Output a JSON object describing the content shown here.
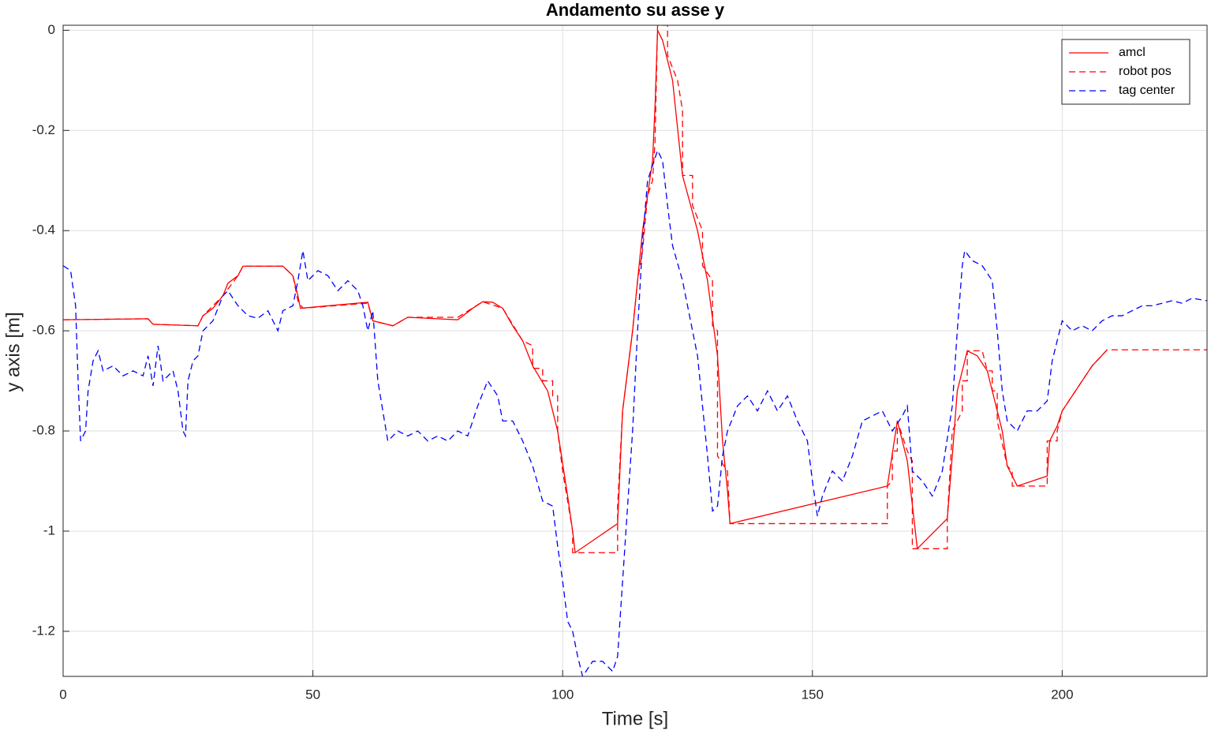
{
  "chart_data": {
    "type": "line",
    "title": "Andamento su asse y",
    "xlabel": "Time [s]",
    "ylabel": "y axis [m]",
    "xlim": [
      0,
      229
    ],
    "ylim": [
      -1.29,
      0.01
    ],
    "xticks": [
      0,
      50,
      100,
      150,
      200
    ],
    "yticks": [
      0,
      -0.2,
      -0.4,
      -0.6,
      -0.8,
      -1,
      -1.2
    ],
    "grid": true,
    "legend": "northeast",
    "series": [
      {
        "name": "amcl",
        "color": "#ff0000",
        "dash": "solid",
        "x": [
          0,
          17,
          18,
          27,
          28,
          30,
          32,
          33,
          35,
          36,
          44,
          46,
          47,
          47.5,
          61,
          62,
          66,
          69,
          79,
          82,
          84,
          86,
          88,
          90,
          92,
          94,
          97,
          99,
          101,
          102,
          102.5,
          111,
          112,
          114,
          116,
          118,
          118.5,
          119,
          120,
          122,
          124,
          127,
          129,
          131,
          132,
          133,
          133.5,
          165,
          167,
          169,
          171,
          177,
          178,
          179,
          181,
          183,
          185,
          188,
          189,
          191,
          197,
          197.5,
          199,
          200,
          202,
          204,
          206,
          209
        ],
        "values": [
          -0.578,
          -0.576,
          -0.587,
          -0.59,
          -0.57,
          -0.555,
          -0.53,
          -0.505,
          -0.49,
          -0.471,
          -0.471,
          -0.49,
          -0.53,
          -0.555,
          -0.543,
          -0.58,
          -0.59,
          -0.573,
          -0.578,
          -0.555,
          -0.542,
          -0.543,
          -0.555,
          -0.59,
          -0.62,
          -0.67,
          -0.72,
          -0.8,
          -0.93,
          -1.0,
          -1.043,
          -0.985,
          -0.76,
          -0.6,
          -0.4,
          -0.26,
          -0.15,
          0.0,
          -0.02,
          -0.1,
          -0.29,
          -0.4,
          -0.5,
          -0.65,
          -0.82,
          -0.92,
          -0.985,
          -0.91,
          -0.78,
          -0.86,
          -1.035,
          -0.975,
          -0.85,
          -0.72,
          -0.64,
          -0.65,
          -0.68,
          -0.8,
          -0.87,
          -0.91,
          -0.89,
          -0.82,
          -0.79,
          -0.76,
          -0.73,
          -0.7,
          -0.67,
          -0.638
        ]
      },
      {
        "name": "robot pos",
        "color": "#ff0000",
        "dash": "dashed",
        "x": [
          0,
          17,
          18,
          27,
          28,
          32,
          35,
          36,
          44,
          46,
          47,
          48,
          61,
          62,
          66,
          69,
          79,
          84,
          88,
          92,
          94,
          94,
          96,
          96,
          98,
          98,
          99,
          99,
          100,
          102,
          102,
          111,
          111,
          112,
          114,
          115,
          116,
          117,
          118,
          118.5,
          119,
          121,
          121,
          123,
          124,
          124,
          126,
          126,
          128,
          128,
          130,
          130,
          131,
          131,
          133,
          133.5,
          165,
          165,
          166,
          166,
          167,
          167,
          169,
          170,
          170,
          177,
          177,
          178,
          180,
          180,
          181,
          181,
          184,
          185,
          186,
          186,
          187,
          187,
          189,
          190,
          190,
          197,
          197,
          199,
          199,
          200,
          202,
          206,
          209,
          229
        ],
        "values": [
          -0.578,
          -0.576,
          -0.587,
          -0.59,
          -0.57,
          -0.53,
          -0.49,
          -0.471,
          -0.471,
          -0.49,
          -0.54,
          -0.555,
          -0.545,
          -0.58,
          -0.59,
          -0.573,
          -0.573,
          -0.542,
          -0.555,
          -0.62,
          -0.63,
          -0.675,
          -0.675,
          -0.7,
          -0.7,
          -0.73,
          -0.73,
          -0.8,
          -0.88,
          -1.0,
          -1.043,
          -1.043,
          -0.95,
          -0.76,
          -0.6,
          -0.5,
          -0.44,
          -0.33,
          -0.3,
          -0.22,
          0.01,
          0.01,
          -0.05,
          -0.1,
          -0.16,
          -0.29,
          -0.29,
          -0.35,
          -0.4,
          -0.47,
          -0.5,
          -0.59,
          -0.6,
          -0.85,
          -0.88,
          -0.985,
          -0.985,
          -0.91,
          -0.9,
          -0.84,
          -0.84,
          -0.78,
          -0.84,
          -0.86,
          -1.035,
          -1.035,
          -0.975,
          -0.8,
          -0.76,
          -0.7,
          -0.7,
          -0.64,
          -0.64,
          -0.68,
          -0.68,
          -0.72,
          -0.72,
          -0.78,
          -0.87,
          -0.88,
          -0.91,
          -0.91,
          -0.82,
          -0.82,
          -0.8,
          -0.76,
          -0.73,
          -0.67,
          -0.638,
          -0.638
        ]
      },
      {
        "name": "tag center",
        "color": "#0000ff",
        "dash": "dashed",
        "x": [
          0,
          1.5,
          2.5,
          3,
          3.5,
          4.5,
          5,
          6,
          7,
          8,
          10,
          12,
          14,
          16,
          17,
          18,
          19,
          20,
          22,
          23,
          24,
          24.5,
          25,
          26,
          27,
          28,
          30,
          32,
          33,
          35,
          37,
          39,
          41,
          42,
          43,
          44,
          46,
          47,
          48,
          49,
          51,
          53,
          55,
          57,
          59,
          60,
          61,
          62,
          63,
          64,
          65,
          67,
          69,
          71,
          73,
          75,
          77,
          79,
          81,
          83,
          85,
          87,
          88,
          90,
          92,
          94,
          96,
          98,
          99,
          100,
          101,
          102,
          103,
          104,
          106,
          108,
          110,
          111,
          112,
          113,
          114,
          115,
          116,
          117,
          118,
          119,
          120,
          121,
          122,
          124,
          126,
          127,
          128,
          129,
          130,
          131,
          132,
          133,
          135,
          137,
          139,
          141,
          143,
          145,
          147,
          149,
          150,
          151,
          152,
          154,
          156,
          158,
          160,
          162,
          164,
          166,
          168,
          169,
          170,
          172,
          174,
          176,
          178,
          179,
          180,
          180.5,
          182,
          184,
          186,
          187,
          188,
          189,
          191,
          193,
          195,
          197,
          198,
          199,
          200,
          202,
          204,
          206,
          208,
          210,
          212,
          214,
          216,
          218,
          220,
          222,
          224,
          226,
          229
        ],
        "values": [
          -0.47,
          -0.48,
          -0.55,
          -0.7,
          -0.82,
          -0.8,
          -0.72,
          -0.66,
          -0.64,
          -0.68,
          -0.67,
          -0.69,
          -0.68,
          -0.69,
          -0.65,
          -0.71,
          -0.63,
          -0.7,
          -0.68,
          -0.72,
          -0.8,
          -0.81,
          -0.7,
          -0.66,
          -0.65,
          -0.6,
          -0.58,
          -0.53,
          -0.52,
          -0.55,
          -0.57,
          -0.575,
          -0.56,
          -0.58,
          -0.6,
          -0.56,
          -0.55,
          -0.5,
          -0.44,
          -0.5,
          -0.48,
          -0.49,
          -0.52,
          -0.5,
          -0.52,
          -0.55,
          -0.6,
          -0.56,
          -0.7,
          -0.76,
          -0.82,
          -0.8,
          -0.81,
          -0.8,
          -0.82,
          -0.81,
          -0.82,
          -0.8,
          -0.81,
          -0.75,
          -0.7,
          -0.73,
          -0.78,
          -0.78,
          -0.82,
          -0.87,
          -0.94,
          -0.95,
          -1.03,
          -1.1,
          -1.18,
          -1.2,
          -1.25,
          -1.29,
          -1.26,
          -1.26,
          -1.28,
          -1.25,
          -1.1,
          -0.95,
          -0.8,
          -0.6,
          -0.42,
          -0.3,
          -0.27,
          -0.24,
          -0.26,
          -0.35,
          -0.43,
          -0.5,
          -0.6,
          -0.65,
          -0.75,
          -0.85,
          -0.96,
          -0.95,
          -0.85,
          -0.8,
          -0.75,
          -0.73,
          -0.76,
          -0.72,
          -0.76,
          -0.73,
          -0.78,
          -0.82,
          -0.9,
          -0.97,
          -0.93,
          -0.88,
          -0.9,
          -0.85,
          -0.78,
          -0.77,
          -0.76,
          -0.8,
          -0.77,
          -0.75,
          -0.88,
          -0.9,
          -0.93,
          -0.88,
          -0.75,
          -0.6,
          -0.47,
          -0.44,
          -0.46,
          -0.47,
          -0.5,
          -0.6,
          -0.72,
          -0.78,
          -0.8,
          -0.76,
          -0.76,
          -0.74,
          -0.66,
          -0.62,
          -0.58,
          -0.6,
          -0.59,
          -0.6,
          -0.58,
          -0.57,
          -0.57,
          -0.56,
          -0.55,
          -0.55,
          -0.545,
          -0.54,
          -0.545,
          -0.535,
          -0.54
        ]
      }
    ]
  }
}
